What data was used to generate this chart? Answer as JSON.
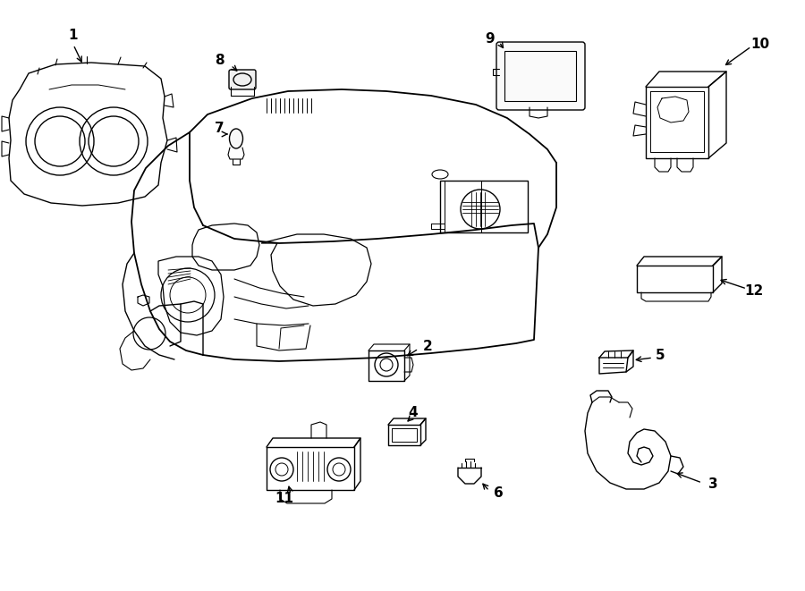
{
  "background_color": "#ffffff",
  "line_color": "#000000",
  "label_color": "#000000",
  "fig_width": 9.0,
  "fig_height": 6.61,
  "dpi": 100
}
